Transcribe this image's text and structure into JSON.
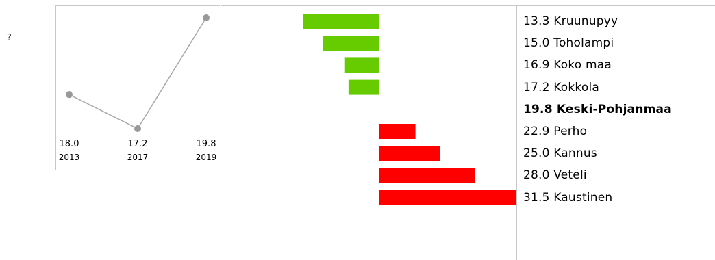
{
  "help_mark": "?",
  "colors": {
    "below": "#66cc00",
    "above": "#ff0000",
    "trend_line": "#aaaaaa",
    "trend_point": "#999999",
    "gridline": "#c8c8c8"
  },
  "chart_data": [
    {
      "type": "line",
      "x": [
        "2013",
        "2017",
        "2019"
      ],
      "series": [
        {
          "values": [
            18.0,
            17.2,
            19.8
          ],
          "labels": [
            "18.0",
            "17.2",
            "19.8"
          ]
        }
      ]
    },
    {
      "type": "bar",
      "orientation": "horizontal",
      "baseline": 19.8,
      "xlim": [
        6.3,
        31.5
      ],
      "highlight": "Keski-Pohjanmaa",
      "categories": [
        "Kruunupyy",
        "Toholampi",
        "Koko maa",
        "Kokkola",
        "Keski-Pohjanmaa",
        "Perho",
        "Kannus",
        "Veteli",
        "Kaustinen"
      ],
      "values": [
        13.3,
        15.0,
        16.9,
        17.2,
        19.8,
        22.9,
        25.0,
        28.0,
        31.5
      ],
      "value_labels": [
        "13.3",
        "15.0",
        "16.9",
        "17.2",
        "19.8",
        "22.9",
        "25.0",
        "28.0",
        "31.5"
      ]
    }
  ]
}
